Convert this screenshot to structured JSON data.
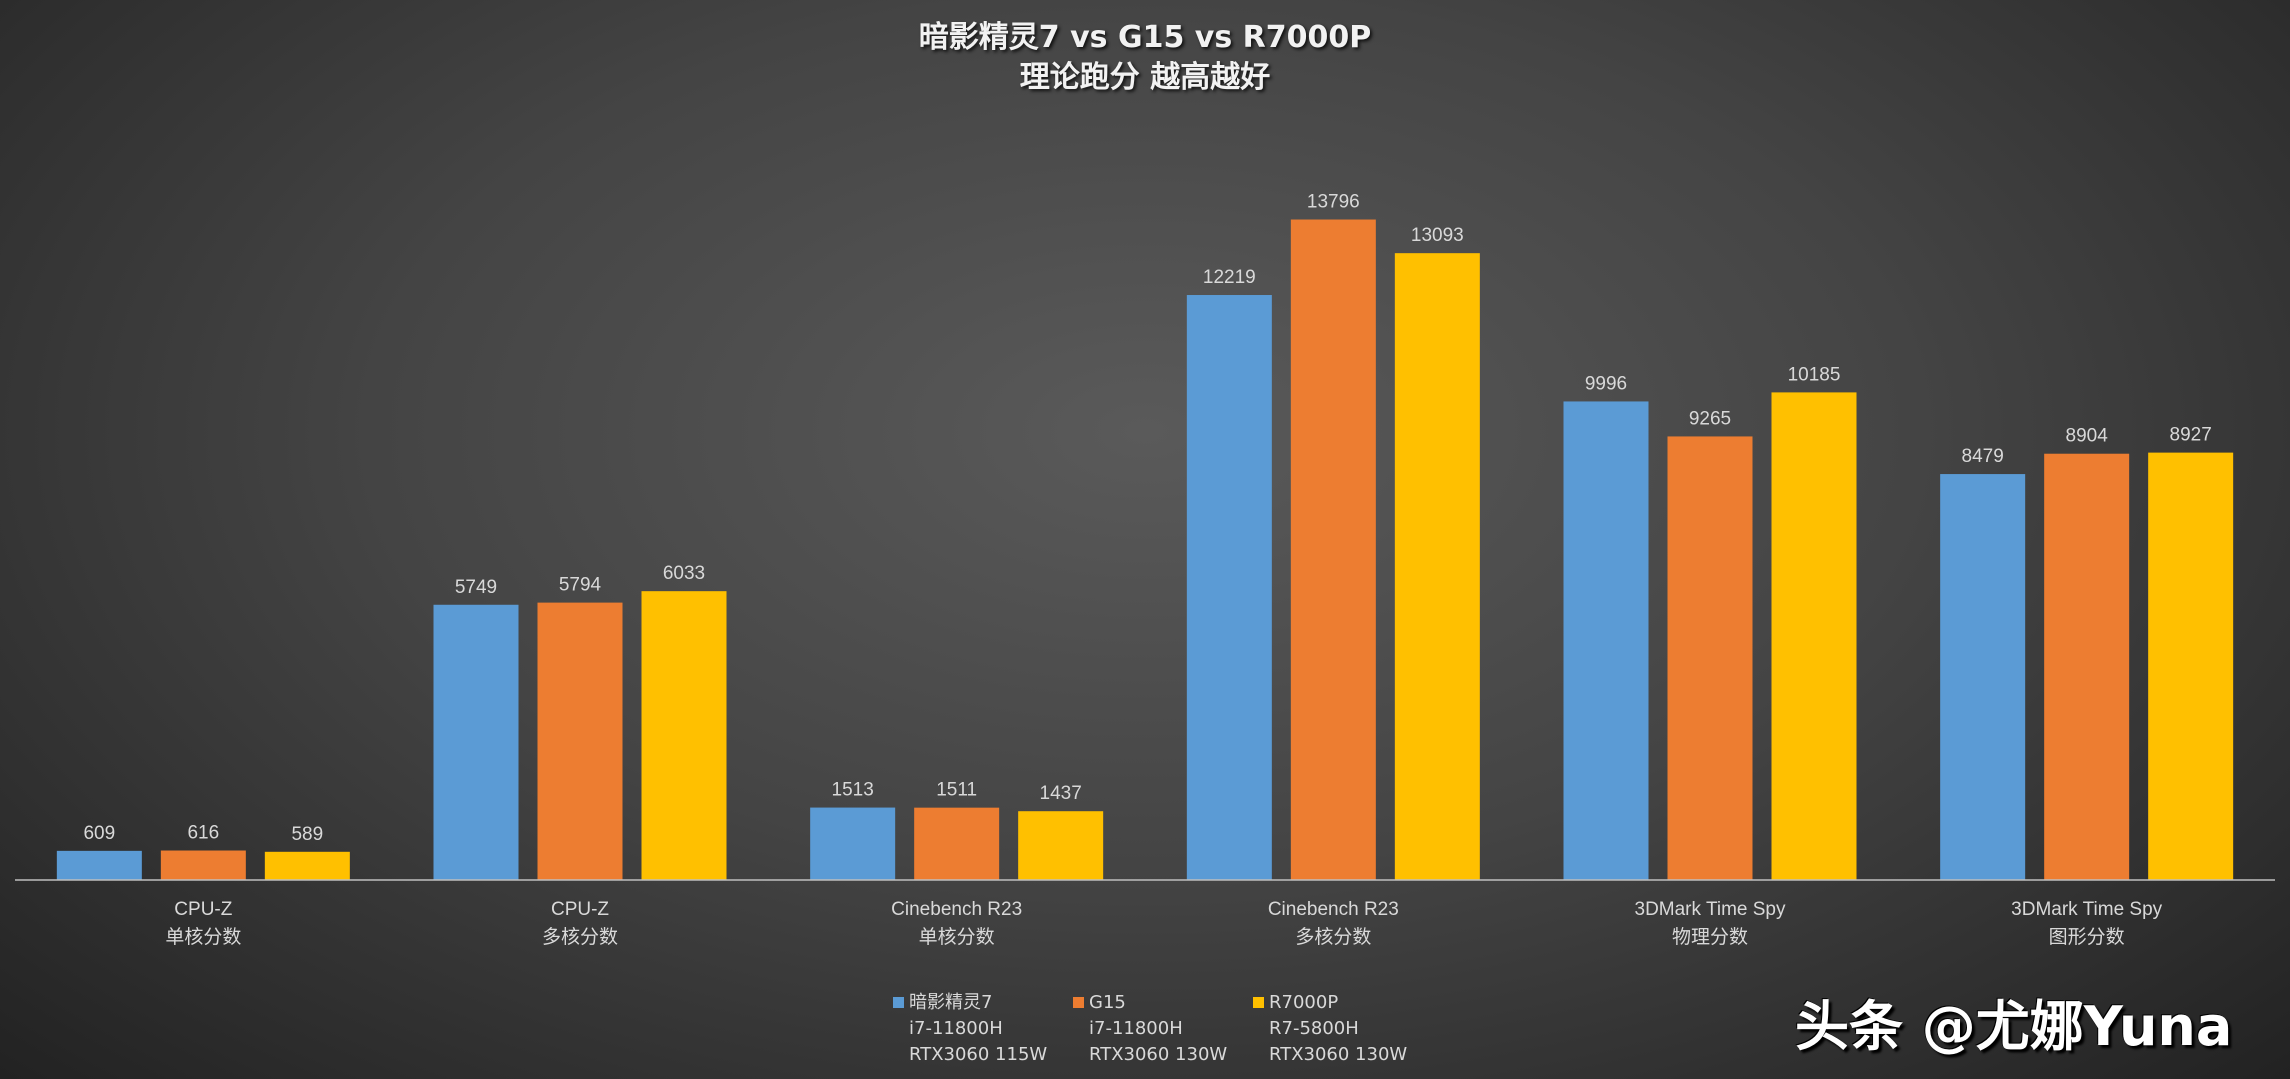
{
  "chart_data": {
    "type": "bar",
    "title": "暗影精灵7 vs G15 vs R7000P",
    "subtitle": "理论跑分 越高越好",
    "categories": [
      [
        "CPU-Z",
        "单核分数"
      ],
      [
        "CPU-Z",
        "多核分数"
      ],
      [
        "Cinebench R23",
        "单核分数"
      ],
      [
        "Cinebench R23",
        "多核分数"
      ],
      [
        "3DMark Time Spy",
        "物理分数"
      ],
      [
        "3DMark Time Spy",
        "图形分数"
      ]
    ],
    "series": [
      {
        "name": "暗影精灵7",
        "details": [
          "i7-11800H",
          "RTX3060 115W"
        ],
        "color": "#5b9bd5",
        "values": [
          609,
          5749,
          1513,
          12219,
          9996,
          8479
        ]
      },
      {
        "name": "G15",
        "details": [
          "i7-11800H",
          "RTX3060 130W"
        ],
        "color": "#ed7d31",
        "values": [
          616,
          5794,
          1511,
          13796,
          9265,
          8904
        ]
      },
      {
        "name": "R7000P",
        "details": [
          "R7-5800H",
          "RTX3060 130W"
        ],
        "color": "#ffc000",
        "values": [
          589,
          6033,
          1437,
          13093,
          10185,
          8927
        ]
      }
    ],
    "ylim": [
      0,
      16000
    ],
    "grid": false,
    "legend": "bottom",
    "data_labels": true
  },
  "watermark": "头条 @尤娜Yuna"
}
